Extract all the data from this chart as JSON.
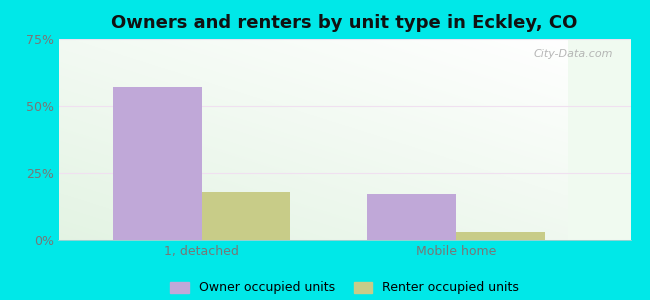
{
  "title": "Owners and renters by unit type in Eckley, CO",
  "categories": [
    "1, detached",
    "Mobile home"
  ],
  "owner_values": [
    57,
    17
  ],
  "renter_values": [
    18,
    3
  ],
  "owner_color": "#c0a8d8",
  "renter_color": "#c8cc88",
  "owner_label": "Owner occupied units",
  "renter_label": "Renter occupied units",
  "ylim": [
    0,
    75
  ],
  "yticks": [
    0,
    25,
    50,
    75
  ],
  "yticklabels": [
    "0%",
    "25%",
    "50%",
    "75%"
  ],
  "figure_bg": "#00e8e8",
  "bar_width": 0.28,
  "watermark": "City-Data.com",
  "grid_color": "#e0ece0",
  "tick_color": "#777777"
}
